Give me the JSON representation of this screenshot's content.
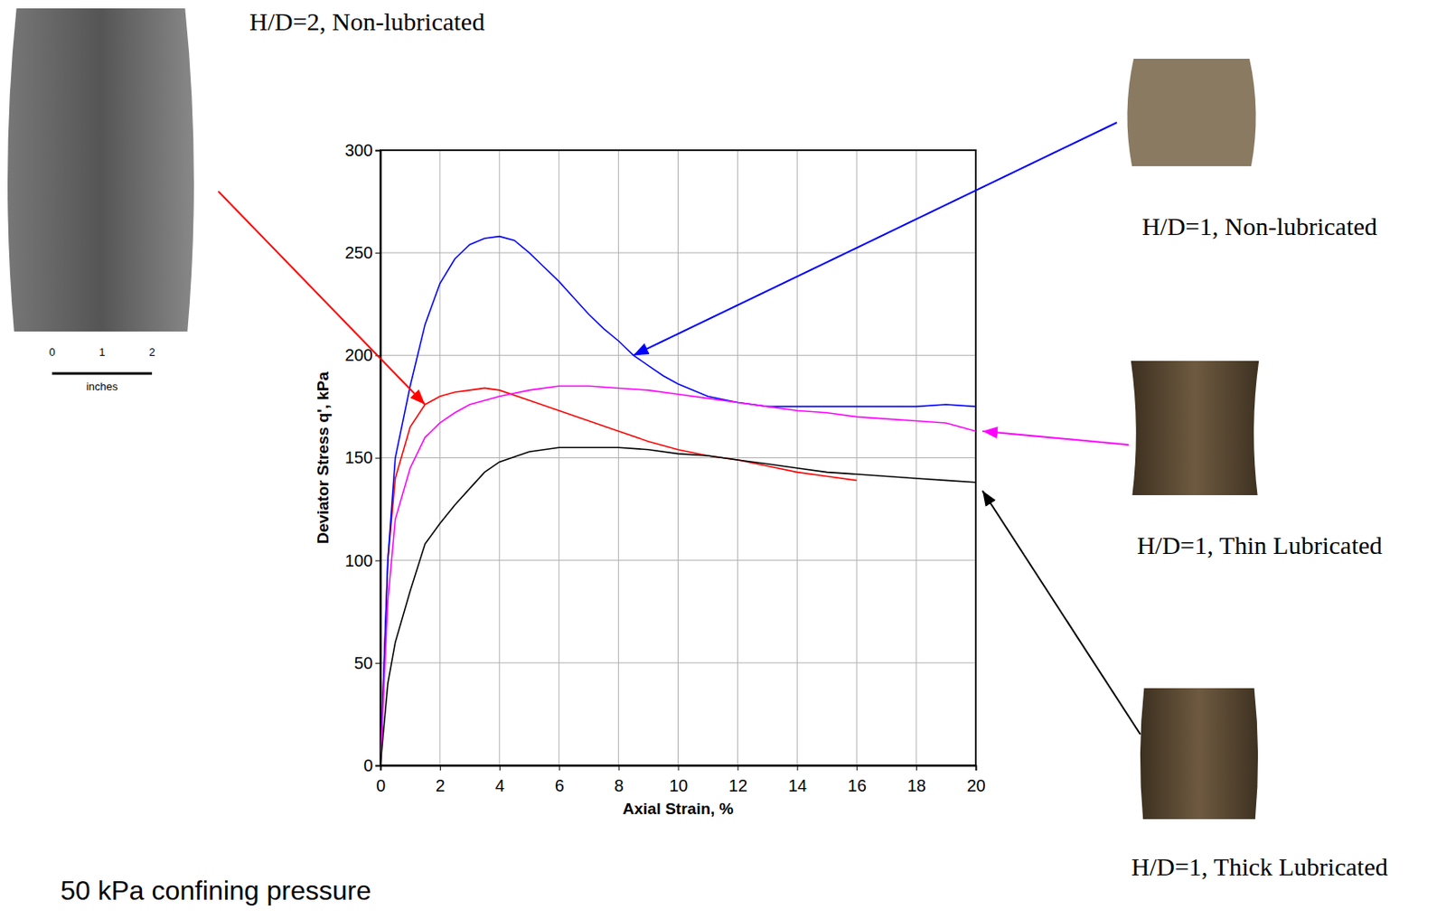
{
  "chart_data": {
    "type": "line",
    "x_label": "Axial Strain, %",
    "y_label": "Deviator Stress q', kPa",
    "xlim": [
      0,
      20
    ],
    "xticks": [
      0,
      2,
      4,
      6,
      8,
      10,
      12,
      14,
      16,
      18,
      20
    ],
    "ylim": [
      0,
      300
    ],
    "yticks": [
      0,
      50,
      100,
      150,
      200,
      250,
      300
    ],
    "grid": true,
    "annotations": [
      "50 kPa confining pressure"
    ],
    "scale_bar": {
      "ticks": [
        0,
        1,
        2
      ],
      "label": "inches"
    },
    "series": [
      {
        "name": "H/D=2, Non-lubricated",
        "color": "#ff0000",
        "x": [
          0,
          0.25,
          0.5,
          1,
          1.5,
          2,
          2.5,
          3,
          3.5,
          4,
          5,
          6,
          7,
          8,
          9,
          10,
          11,
          12,
          13,
          14,
          15,
          16
        ],
        "values": [
          0,
          100,
          140,
          165,
          176,
          180,
          182,
          183,
          184,
          183,
          178,
          173,
          168,
          163,
          158,
          154,
          151,
          149,
          146,
          143,
          141,
          139
        ]
      },
      {
        "name": "H/D=1, Non-lubricated",
        "color": "#0000ff",
        "x": [
          0,
          0.25,
          0.5,
          1,
          1.5,
          2,
          2.5,
          3,
          3.5,
          4,
          4.5,
          5,
          5.5,
          6,
          6.5,
          7,
          7.5,
          8,
          8.5,
          9,
          9.5,
          10,
          11,
          12,
          13,
          14,
          15,
          16,
          17,
          18,
          19,
          20
        ],
        "values": [
          0,
          100,
          150,
          185,
          215,
          235,
          247,
          254,
          257,
          258,
          256,
          250,
          243,
          236,
          228,
          220,
          213,
          207,
          200,
          195,
          190,
          186,
          180,
          177,
          175,
          175,
          175,
          175,
          175,
          175,
          176,
          175
        ]
      },
      {
        "name": "H/D=1, Thin Lubricated",
        "color": "#ff00ff",
        "x": [
          0,
          0.25,
          0.5,
          1,
          1.5,
          2,
          2.5,
          3,
          4,
          5,
          6,
          7,
          8,
          9,
          10,
          11,
          12,
          13,
          14,
          15,
          16,
          17,
          18,
          19,
          20
        ],
        "values": [
          0,
          80,
          120,
          145,
          160,
          167,
          172,
          176,
          180,
          183,
          185,
          185,
          184,
          183,
          181,
          179,
          177,
          175,
          173,
          172,
          170,
          169,
          168,
          167,
          163
        ]
      },
      {
        "name": "H/D=1, Thick Lubricated",
        "color": "#000000",
        "x": [
          0,
          0.25,
          0.5,
          1,
          1.5,
          2,
          2.5,
          3,
          3.5,
          4,
          5,
          6,
          7,
          8,
          9,
          10,
          11,
          12,
          13,
          14,
          15,
          16,
          17,
          18,
          19,
          20
        ],
        "values": [
          0,
          40,
          60,
          85,
          108,
          118,
          127,
          135,
          143,
          148,
          153,
          155,
          155,
          155,
          154,
          152,
          151,
          149,
          147,
          145,
          143,
          142,
          141,
          140,
          139,
          138
        ]
      }
    ]
  }
}
